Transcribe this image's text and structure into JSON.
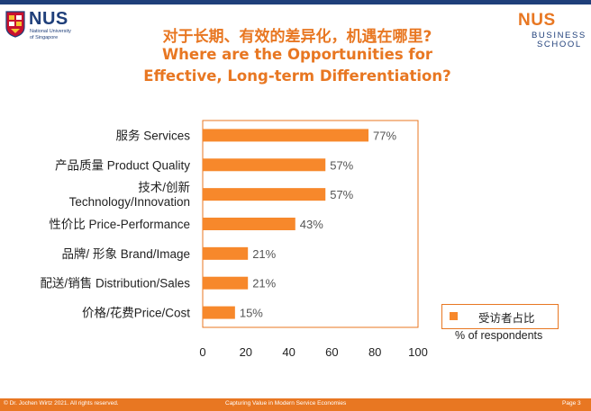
{
  "header": {
    "title_cn": "对于长期、有效的差异化，机遇在哪里?",
    "title_en_line1": "Where are the Opportunities for",
    "title_en_line2": "Effective, Long-term Differentiation?",
    "logo_left": {
      "name": "NUS",
      "sub_line1": "National University",
      "sub_line2": "of Singapore"
    },
    "logo_right": {
      "name": "NUS",
      "line1": "BUSINESS",
      "line2": "SCHOOL"
    }
  },
  "chart_data": {
    "type": "bar",
    "orientation": "horizontal",
    "categories": [
      [
        "服务 Services"
      ],
      [
        "产品质量 Product Quality"
      ],
      [
        "技术/创新",
        "Technology/Innovation"
      ],
      [
        "性价比 Price-Performance"
      ],
      [
        "品牌/ 形象 Brand/Image"
      ],
      [
        "配送/销售 Distribution/Sales"
      ],
      [
        "价格/花费Price/Cost"
      ]
    ],
    "values": [
      77,
      57,
      57,
      43,
      21,
      21,
      15
    ],
    "value_labels": [
      "77%",
      "57%",
      "57%",
      "43%",
      "21%",
      "21%",
      "15%"
    ],
    "xlim": [
      0,
      100
    ],
    "xticks": [
      "0",
      "20",
      "40",
      "60",
      "80",
      "100"
    ],
    "legend": {
      "label": "受访者占比",
      "position": "bottom-right"
    },
    "xlabel": "% of respondents",
    "grid": false,
    "bar_color": "#f7882b",
    "axis_color": "#e87722"
  },
  "footer": {
    "left": "© Dr. Jochen Wirtz 2021. All rights reserved.",
    "middle": "Capturing Value in Modern Service Economies",
    "right": "Page 3"
  },
  "colors": {
    "accent": "#e87722",
    "navy": "#1f3f7a"
  }
}
